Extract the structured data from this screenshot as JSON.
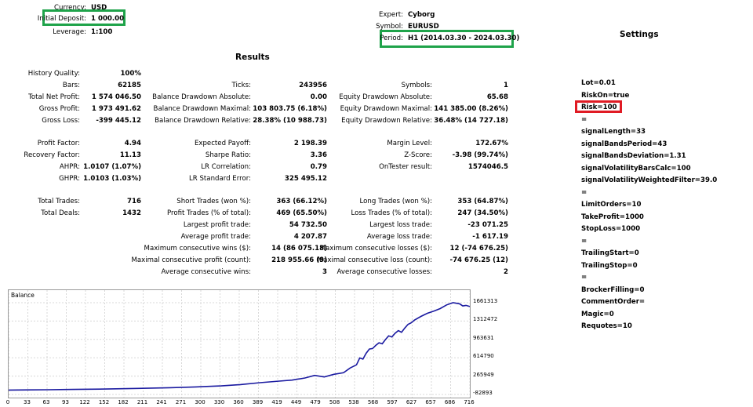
{
  "header": {
    "currency_label": "Currency:",
    "currency_value": "USD",
    "deposit_label": "Initial Deposit:",
    "deposit_value": "1 000.00",
    "leverage_label": "Leverage:",
    "leverage_value": "1:100",
    "expert_label": "Expert:",
    "expert_value": "Cyborg",
    "symbol_label": "Symbol:",
    "symbol_value": "EURUSD",
    "period_label": "Period:",
    "period_value": "H1 (2014.03.30 - 2024.03.30)"
  },
  "results_title": "Results",
  "settings_title": "Settings",
  "highlight_colors": {
    "green": "#1fa34a",
    "red": "#e01b24"
  },
  "stats": {
    "history_quality": {
      "label": "History Quality:",
      "value": "100%"
    },
    "bars": {
      "label": "Bars:",
      "value": "62185"
    },
    "total_net_profit": {
      "label": "Total Net Profit:",
      "value": "1 574 046.50"
    },
    "gross_profit": {
      "label": "Gross Profit:",
      "value": "1 973 491.62"
    },
    "gross_loss": {
      "label": "Gross Loss:",
      "value": "-399 445.12"
    },
    "ticks": {
      "label": "Ticks:",
      "value": "243956"
    },
    "balance_dd_abs": {
      "label": "Balance Drawdown Absolute:",
      "value": "0.00"
    },
    "balance_dd_max": {
      "label": "Balance Drawdown Maximal:",
      "value": "103 803.75 (6.18%)"
    },
    "balance_dd_rel": {
      "label": "Balance Drawdown Relative:",
      "value": "28.38% (10 988.73)"
    },
    "symbols": {
      "label": "Symbols:",
      "value": "1"
    },
    "equity_dd_abs": {
      "label": "Equity Drawdown Absolute:",
      "value": "65.68"
    },
    "equity_dd_max": {
      "label": "Equity Drawdown Maximal:",
      "value": "141 385.00 (8.26%)"
    },
    "equity_dd_rel": {
      "label": "Equity Drawdown Relative:",
      "value": "36.48% (14 727.18)"
    },
    "profit_factor": {
      "label": "Profit Factor:",
      "value": "4.94"
    },
    "recovery_factor": {
      "label": "Recovery Factor:",
      "value": "11.13"
    },
    "ahpr": {
      "label": "AHPR:",
      "value": "1.0107 (1.07%)"
    },
    "ghpr": {
      "label": "GHPR:",
      "value": "1.0103 (1.03%)"
    },
    "expected_payoff": {
      "label": "Expected Payoff:",
      "value": "2 198.39"
    },
    "sharpe_ratio": {
      "label": "Sharpe Ratio:",
      "value": "3.36"
    },
    "lr_correlation": {
      "label": "LR Correlation:",
      "value": "0.79"
    },
    "lr_std_error": {
      "label": "LR Standard Error:",
      "value": "325 495.12"
    },
    "margin_level": {
      "label": "Margin Level:",
      "value": "172.67%"
    },
    "z_score": {
      "label": "Z-Score:",
      "value": "-3.98 (99.74%)"
    },
    "ontester": {
      "label": "OnTester result:",
      "value": "1574046.5"
    },
    "total_trades": {
      "label": "Total Trades:",
      "value": "716"
    },
    "total_deals": {
      "label": "Total Deals:",
      "value": "1432"
    },
    "short_trades": {
      "label": "Short Trades (won %):",
      "value": "363 (66.12%)"
    },
    "profit_trades": {
      "label": "Profit Trades (% of total):",
      "value": "469 (65.50%)"
    },
    "largest_profit": {
      "label": "Largest profit trade:",
      "value": "54 732.50"
    },
    "avg_profit": {
      "label": "Average profit trade:",
      "value": "4 207.87"
    },
    "max_consec_wins": {
      "label": "Maximum consecutive wins ($):",
      "value": "14 (86 075.18)"
    },
    "maximal_consec_profit": {
      "label": "Maximal consecutive profit (count):",
      "value": "218 955.66 (9)"
    },
    "avg_consec_wins": {
      "label": "Average consecutive wins:",
      "value": "3"
    },
    "long_trades": {
      "label": "Long Trades (won %):",
      "value": "353 (64.87%)"
    },
    "loss_trades": {
      "label": "Loss Trades (% of total):",
      "value": "247 (34.50%)"
    },
    "largest_loss": {
      "label": "Largest loss trade:",
      "value": "-23 071.25"
    },
    "avg_loss": {
      "label": "Average loss trade:",
      "value": "-1 617.19"
    },
    "max_consec_losses": {
      "label": "Maximum consecutive losses ($):",
      "value": "12 (-74 676.25)"
    },
    "maximal_consec_loss": {
      "label": "Maximal consecutive loss (count):",
      "value": "-74 676.25 (12)"
    },
    "avg_consec_losses": {
      "label": "Average consecutive losses:",
      "value": "2"
    }
  },
  "settings": [
    "Lot=0.01",
    "RiskOn=true",
    "Risk=100",
    "=",
    "signalLength=33",
    "signalBandsPeriod=43",
    "signalBandsDeviation=1.31",
    "signalVolatilityBarsCalc=100",
    "signalVolatilityWeightedFilter=39.0",
    "=",
    "LimitOrders=10",
    "TakeProfit=1000",
    "StopLoss=1000",
    "=",
    "TrailingStart=0",
    "TrailingStop=0",
    "=",
    "BrockerFilling=0",
    "CommentOrder=",
    "Magic=0",
    "Requotes=10"
  ],
  "chart_data": {
    "type": "line",
    "title": "Balance",
    "line_color": "#1a1aa0",
    "x_ticks": [
      "0",
      "33",
      "63",
      "93",
      "122",
      "152",
      "182",
      "211",
      "241",
      "271",
      "300",
      "330",
      "360",
      "389",
      "419",
      "449",
      "479",
      "508",
      "538",
      "568",
      "597",
      "627",
      "657",
      "686",
      "716"
    ],
    "y_ticks": [
      "1661313",
      "1312472",
      "963631",
      "614790",
      "265949",
      "-82893"
    ],
    "xlim": [
      0,
      716
    ],
    "ylim": [
      -82893,
      1661313
    ],
    "series": [
      {
        "x": [
          0,
          30,
          60,
          100,
          150,
          200,
          250,
          290,
          330,
          360,
          390,
          420,
          440,
          460,
          475,
          490,
          505,
          520,
          530,
          540,
          545,
          550,
          555,
          560,
          565,
          570,
          575,
          580,
          585,
          590,
          595,
          600,
          605,
          610,
          615,
          620,
          625,
          630,
          640,
          650,
          660,
          670,
          680,
          690,
          700,
          705,
          710,
          716
        ],
        "y": [
          1000,
          3000,
          6000,
          12000,
          20000,
          32000,
          45000,
          60000,
          80000,
          105000,
          140000,
          170000,
          190000,
          230000,
          280000,
          250000,
          300000,
          330000,
          420000,
          480000,
          610000,
          590000,
          700000,
          780000,
          790000,
          850000,
          900000,
          880000,
          960000,
          1030000,
          1010000,
          1080000,
          1130000,
          1100000,
          1180000,
          1250000,
          1280000,
          1330000,
          1400000,
          1460000,
          1500000,
          1550000,
          1620000,
          1661313,
          1640000,
          1600000,
          1610000,
          1590000
        ]
      }
    ]
  }
}
